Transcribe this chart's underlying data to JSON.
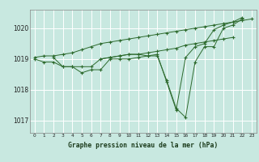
{
  "title": "Graphe pression niveau de la mer (hPa)",
  "bg_color": "#c8e8e0",
  "grid_color": "#b0d8d0",
  "line_color": "#2d6a2d",
  "marker_color": "#2d6a2d",
  "xlim": [
    -0.5,
    23.5
  ],
  "ylim": [
    1016.6,
    1020.6
  ],
  "yticks": [
    1017,
    1018,
    1019,
    1020
  ],
  "xticks": [
    0,
    1,
    2,
    3,
    4,
    5,
    6,
    7,
    8,
    9,
    10,
    11,
    12,
    13,
    14,
    15,
    16,
    17,
    18,
    19,
    20,
    21,
    22,
    23
  ],
  "series": [
    {
      "x": [
        0,
        1,
        2,
        3,
        4,
        5,
        6,
        7,
        8,
        9,
        10,
        11,
        12,
        13,
        14,
        15,
        16,
        17,
        18,
        19,
        20,
        21,
        22
      ],
      "y": [
        1019.0,
        1018.9,
        1018.9,
        1018.75,
        1018.75,
        1018.55,
        1018.65,
        1018.65,
        1019.0,
        1019.0,
        1019.0,
        1019.05,
        1019.1,
        1019.1,
        1018.3,
        1017.4,
        1017.1,
        1018.9,
        1019.4,
        1019.4,
        1020.0,
        1020.1,
        1020.3
      ]
    },
    {
      "x": [
        2,
        3,
        4,
        5,
        6,
        7,
        8,
        9,
        10,
        11,
        12,
        13,
        14,
        15,
        16,
        17,
        18,
        19,
        20,
        21,
        22
      ],
      "y": [
        1019.05,
        1018.75,
        1018.75,
        1018.75,
        1018.75,
        1019.0,
        1019.05,
        1019.1,
        1019.15,
        1019.15,
        1019.1,
        1019.15,
        1018.25,
        1017.35,
        1019.05,
        1019.4,
        1019.5,
        1019.95,
        1020.1,
        1020.2,
        1020.35
      ]
    },
    {
      "x": [
        7,
        8,
        9,
        10,
        11,
        12,
        13,
        14,
        15,
        16,
        17,
        18,
        19,
        20,
        21
      ],
      "y": [
        1019.0,
        1019.05,
        1019.1,
        1019.15,
        1019.15,
        1019.2,
        1019.25,
        1019.3,
        1019.35,
        1019.45,
        1019.5,
        1019.55,
        1019.6,
        1019.65,
        1019.7
      ]
    },
    {
      "x": [
        0,
        1,
        2,
        3,
        4,
        5,
        6,
        7,
        8,
        9,
        10,
        11,
        12,
        13,
        14,
        15,
        16,
        17,
        18,
        19,
        20,
        21,
        22,
        23
      ],
      "y": [
        1019.05,
        1019.1,
        1019.1,
        1019.15,
        1019.2,
        1019.3,
        1019.4,
        1019.5,
        1019.55,
        1019.6,
        1019.65,
        1019.7,
        1019.75,
        1019.8,
        1019.85,
        1019.9,
        1019.95,
        1020.0,
        1020.05,
        1020.1,
        1020.15,
        1020.2,
        1020.25,
        1020.3
      ]
    }
  ]
}
